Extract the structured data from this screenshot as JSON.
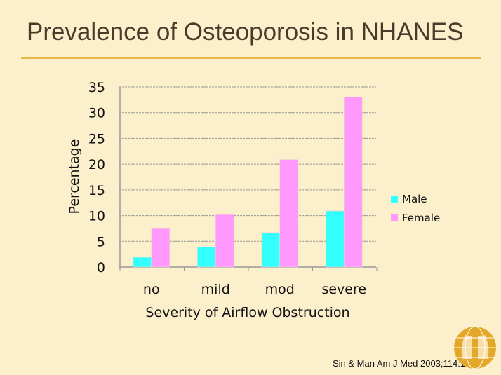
{
  "slide": {
    "title": "Prevalence of Osteoporosis in NHANES",
    "citation": "Sin & Man Am J Med 2003;114:10-14",
    "accent_color": "#e6b84a"
  },
  "chart_data": {
    "type": "bar",
    "categories": [
      "no",
      "mild",
      "mod",
      "severe"
    ],
    "series": [
      {
        "name": "Male",
        "values": [
          1.9,
          3.9,
          6.7,
          10.9
        ],
        "color": "#33ffff"
      },
      {
        "name": "Female",
        "values": [
          7.6,
          10.2,
          20.9,
          33.0
        ],
        "color": "#ff99ff"
      }
    ],
    "xlabel": "Severity of Airflow Obstruction",
    "ylabel": "Percentage",
    "ylim": [
      0,
      35
    ],
    "yticks": [
      "0",
      "5",
      "10",
      "15",
      "20",
      "25",
      "30",
      "35"
    ],
    "grid": true,
    "legend": "right"
  }
}
